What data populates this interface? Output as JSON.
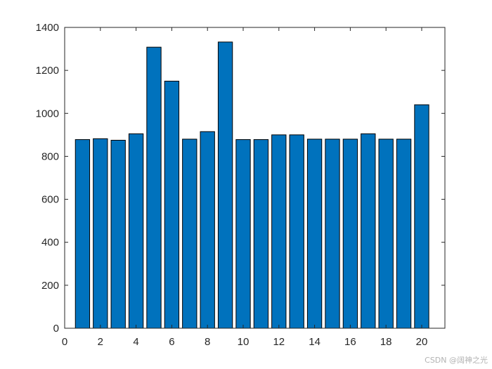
{
  "chart_data": {
    "type": "bar",
    "categories": [
      1,
      2,
      3,
      4,
      5,
      6,
      7,
      8,
      9,
      10,
      11,
      12,
      13,
      14,
      15,
      16,
      17,
      18,
      19,
      20
    ],
    "values": [
      878,
      882,
      875,
      905,
      1308,
      1150,
      880,
      915,
      1332,
      878,
      878,
      900,
      900,
      880,
      880,
      880,
      905,
      880,
      880,
      1040
    ],
    "title": "",
    "xlabel": "",
    "ylabel": "",
    "xlim": [
      0,
      21.3
    ],
    "ylim": [
      0,
      1400
    ],
    "xticks": [
      0,
      2,
      4,
      6,
      8,
      10,
      12,
      14,
      16,
      18,
      20
    ],
    "yticks": [
      0,
      200,
      400,
      600,
      800,
      1000,
      1200,
      1400
    ],
    "grid": false,
    "box": true,
    "bar_color": "#0072BD",
    "edge_color": "#000000"
  },
  "watermark": "CSDN @阔神之光"
}
